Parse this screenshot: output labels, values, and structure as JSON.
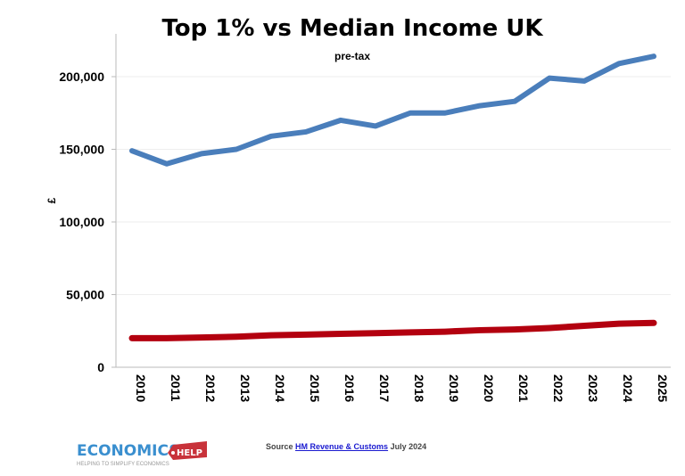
{
  "chart_data": {
    "type": "line",
    "title": "Top 1% vs Median Income UK",
    "subtitle": "pre-tax",
    "xlabel": "",
    "ylabel": "£",
    "ylim": [
      0,
      220000
    ],
    "yticks": [
      0,
      50000,
      100000,
      150000,
      200000
    ],
    "ytick_labels": [
      "0",
      "50,000",
      "100,000",
      "150,000",
      "200,000"
    ],
    "grid": "horizontal",
    "categories": [
      "2010",
      "2011",
      "2012",
      "2013",
      "2014",
      "2015",
      "2016",
      "2017",
      "2018",
      "2019",
      "2020",
      "2021",
      "2022",
      "2023",
      "2024",
      "2025"
    ],
    "series": [
      {
        "color": "#4a7ebb",
        "values": [
          149000,
          140000,
          147000,
          150000,
          159000,
          162000,
          170000,
          166000,
          175000,
          175000,
          180000,
          183000,
          199000,
          197000,
          209000,
          214000
        ]
      },
      {
        "color": "#b3000f",
        "values": [
          20000,
          20000,
          20500,
          21000,
          22000,
          22500,
          23000,
          23500,
          24000,
          24500,
          25500,
          26000,
          27000,
          28500,
          30000,
          30500
        ]
      }
    ]
  },
  "footer": {
    "logo_text": "ECONOMICS",
    "logo_badge": "HELP",
    "logo_tagline": "HELPING TO SIMPLIFY ECONOMICS",
    "source_prefix": "Source",
    "source_link": "HM Revenue & Customs",
    "source_suffix": "July 2024"
  }
}
